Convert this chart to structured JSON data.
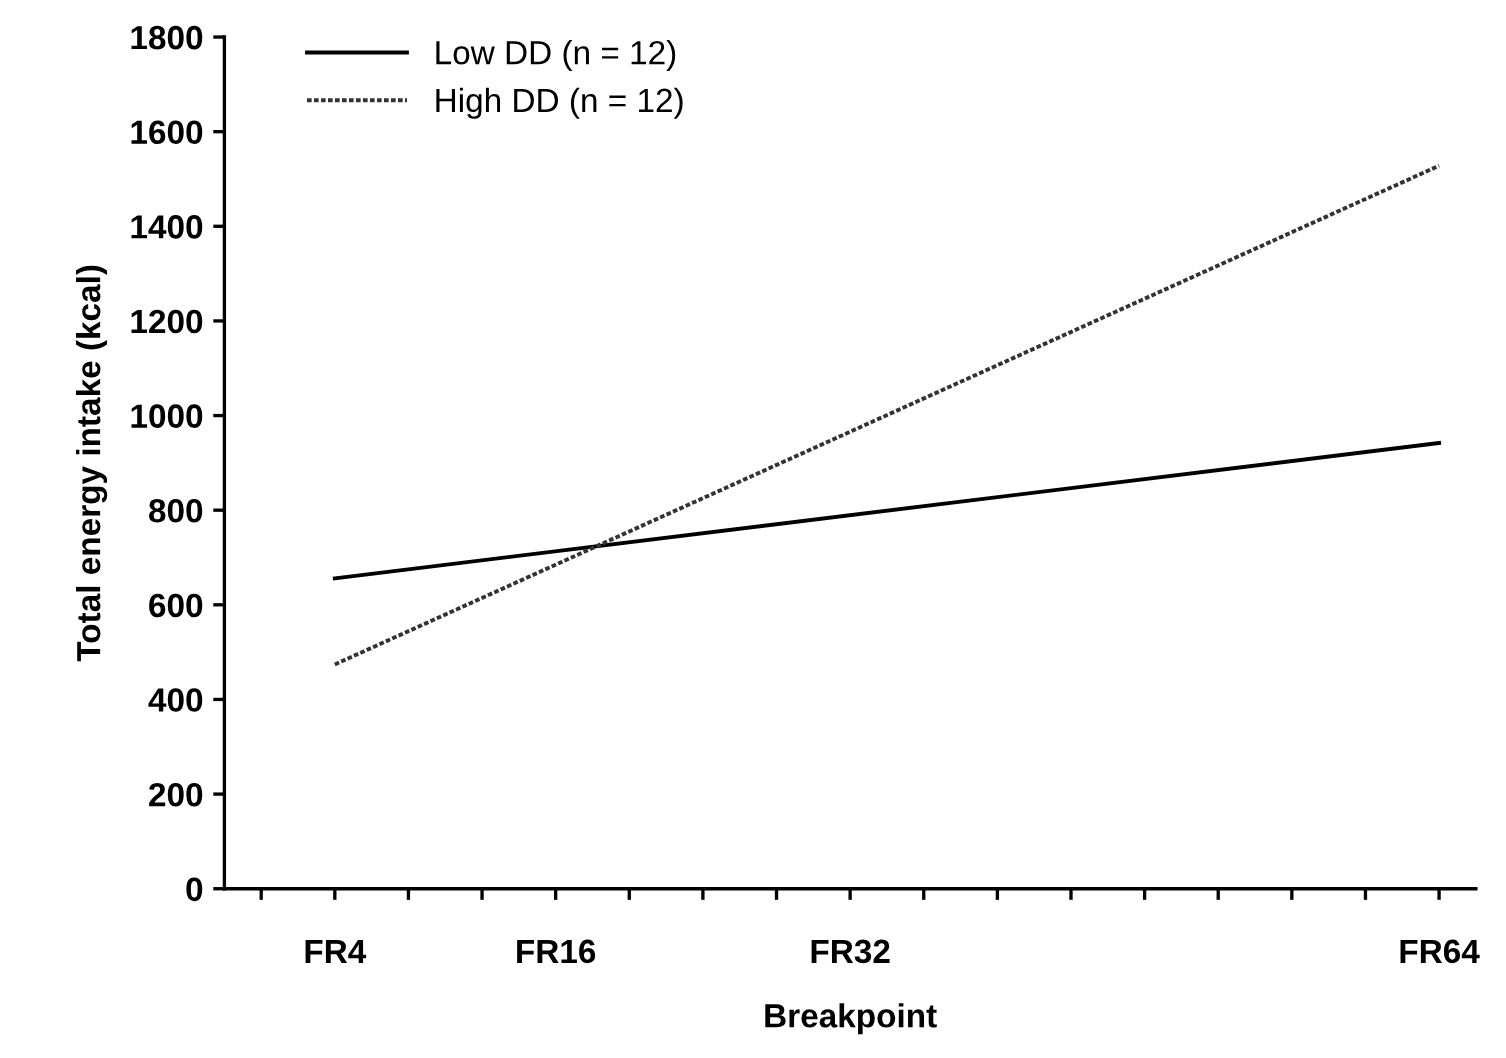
{
  "chart_data": {
    "type": "line",
    "xlabel": "Breakpoint",
    "ylabel": "Total energy intake (kcal)",
    "categories": [
      null,
      "FR4",
      null,
      null,
      "FR16",
      null,
      null,
      null,
      "FR32",
      null,
      null,
      null,
      null,
      null,
      null,
      null,
      "FR64"
    ],
    "series": [
      {
        "name": "Low DD (n = 12)",
        "color": "#000000",
        "line_style": "solid",
        "values": [
          null,
          656,
          null,
          null,
          null,
          null,
          null,
          null,
          null,
          null,
          null,
          null,
          null,
          null,
          null,
          null,
          942
        ]
      },
      {
        "name": "High DD (n = 12)",
        "color": "#333333",
        "line_style": "dotted",
        "values": [
          null,
          474,
          null,
          null,
          null,
          null,
          null,
          null,
          null,
          null,
          null,
          null,
          null,
          null,
          null,
          null,
          1528
        ]
      }
    ],
    "ylim": [
      0,
      1800
    ],
    "yticks": [
      0,
      200,
      400,
      600,
      800,
      1000,
      1200,
      1400,
      1600,
      1800
    ],
    "grid": false,
    "legend": "top left"
  }
}
